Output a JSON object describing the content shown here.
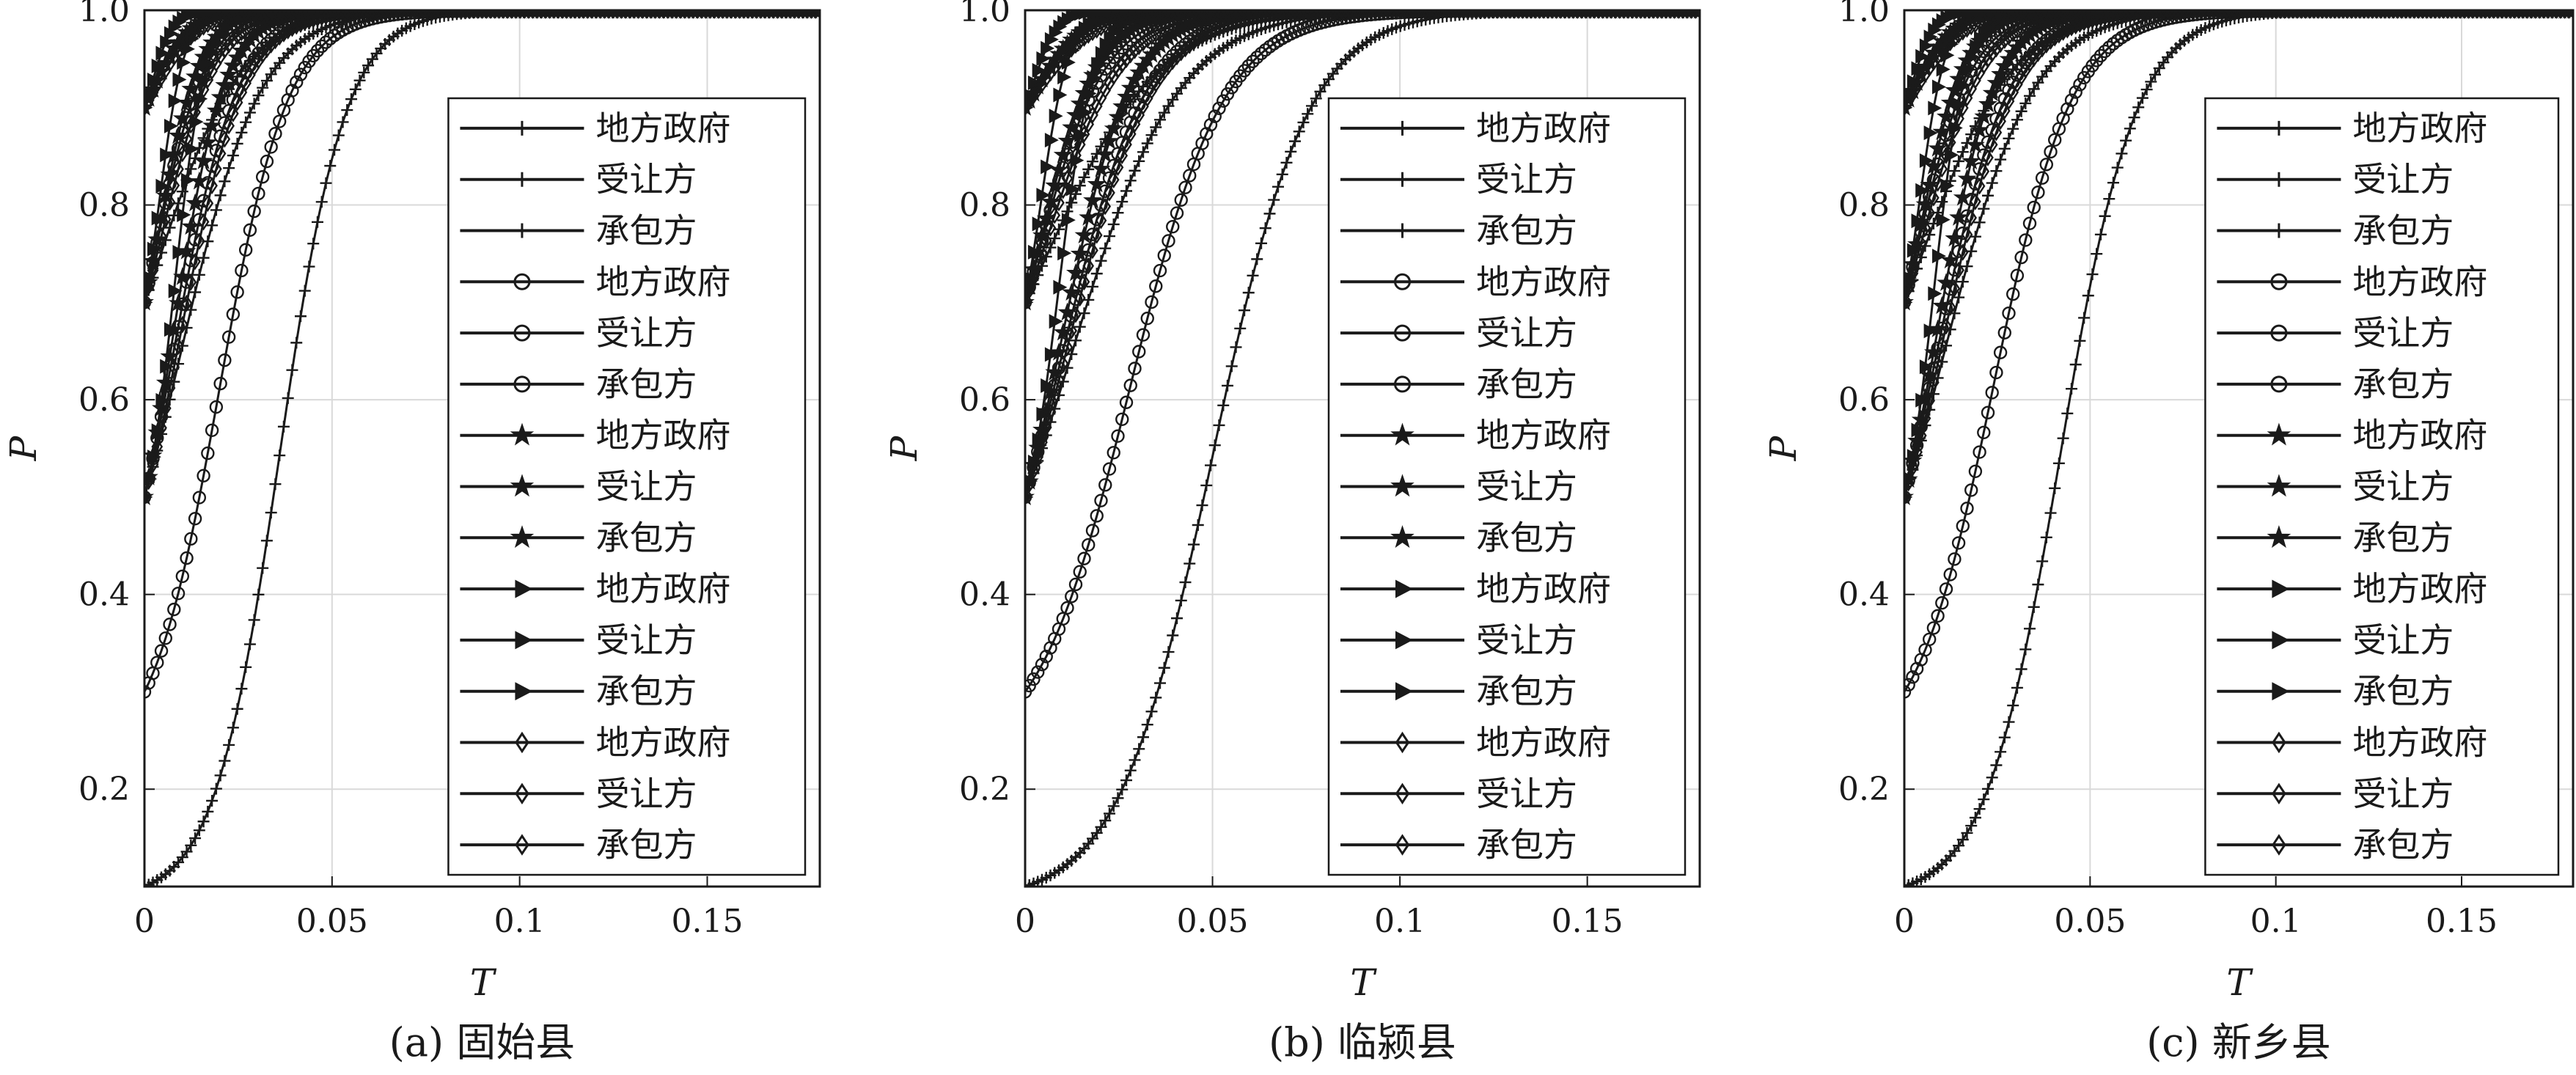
{
  "chart_data": [
    {
      "type": "line",
      "caption": "(a) 固始县",
      "xlabel": "T",
      "ylabel": "P",
      "xlim": [
        0,
        0.18
      ],
      "ylim": [
        0.1,
        1.0
      ],
      "xticks": [
        "0",
        "0.05",
        "0.1",
        "0.15"
      ],
      "yticks": [
        "0.2",
        "0.4",
        "0.6",
        "0.8",
        "1.0"
      ],
      "grid": true,
      "legend_position": "right",
      "series": [
        {
          "name": "地方政府",
          "marker": "plus",
          "p0": 0.1,
          "k": 115,
          "t50": 0.036
        },
        {
          "name": "受让方",
          "marker": "plus",
          "p0": 0.5,
          "k": 95,
          "t50": 0.01
        },
        {
          "name": "承包方",
          "marker": "plus",
          "p0": 0.7,
          "k": 90,
          "t50": 0.004
        },
        {
          "name": "地方政府",
          "marker": "circle",
          "p0": 0.3,
          "k": 110,
          "t50": 0.02
        },
        {
          "name": "受让方",
          "marker": "circle",
          "p0": 0.5,
          "k": 120,
          "t50": 0.008
        },
        {
          "name": "承包方",
          "marker": "circle",
          "p0": 0.7,
          "k": 150,
          "t50": 0.003
        },
        {
          "name": "地方政府",
          "marker": "star",
          "p0": 0.5,
          "k": 150,
          "t50": 0.008
        },
        {
          "name": "受让方",
          "marker": "star",
          "p0": 0.7,
          "k": 180,
          "t50": 0.004
        },
        {
          "name": "承包方",
          "marker": "star",
          "p0": 0.9,
          "k": 200,
          "t50": 0.002
        },
        {
          "name": "地方政府",
          "marker": "triangle",
          "p0": 0.5,
          "k": 250,
          "t50": 0.008
        },
        {
          "name": "受让方",
          "marker": "triangle",
          "p0": 0.7,
          "k": 300,
          "t50": 0.004
        },
        {
          "name": "承包方",
          "marker": "triangle",
          "p0": 0.9,
          "k": 350,
          "t50": 0.002
        },
        {
          "name": "地方政府",
          "marker": "diamond",
          "p0": 0.5,
          "k": 120,
          "t50": 0.01
        },
        {
          "name": "受让方",
          "marker": "diamond",
          "p0": 0.7,
          "k": 140,
          "t50": 0.005
        },
        {
          "name": "承包方",
          "marker": "diamond",
          "p0": 0.9,
          "k": 160,
          "t50": 0.002
        }
      ]
    },
    {
      "type": "line",
      "caption": "(b) 临颍县",
      "xlabel": "T",
      "ylabel": "P",
      "xlim": [
        0,
        0.18
      ],
      "ylim": [
        0.1,
        1.0
      ],
      "xticks": [
        "0",
        "0.05",
        "0.1",
        "0.15"
      ],
      "yticks": [
        "0.2",
        "0.4",
        "0.6",
        "0.8",
        "1.0"
      ],
      "grid": true,
      "legend_position": "right",
      "series": [
        {
          "name": "地方政府",
          "marker": "plus",
          "p0": 0.1,
          "k": 80,
          "t50": 0.05
        },
        {
          "name": "受让方",
          "marker": "plus",
          "p0": 0.5,
          "k": 70,
          "t50": 0.012
        },
        {
          "name": "承包方",
          "marker": "plus",
          "p0": 0.7,
          "k": 65,
          "t50": 0.005
        },
        {
          "name": "地方政府",
          "marker": "circle",
          "p0": 0.3,
          "k": 80,
          "t50": 0.028
        },
        {
          "name": "受让方",
          "marker": "circle",
          "p0": 0.5,
          "k": 90,
          "t50": 0.01
        },
        {
          "name": "承包方",
          "marker": "circle",
          "p0": 0.7,
          "k": 110,
          "t50": 0.003
        },
        {
          "name": "地方政府",
          "marker": "star",
          "p0": 0.5,
          "k": 110,
          "t50": 0.01
        },
        {
          "name": "受让方",
          "marker": "star",
          "p0": 0.7,
          "k": 130,
          "t50": 0.004
        },
        {
          "name": "承包方",
          "marker": "star",
          "p0": 0.9,
          "k": 150,
          "t50": 0.002
        },
        {
          "name": "地方政府",
          "marker": "triangle",
          "p0": 0.5,
          "k": 220,
          "t50": 0.009
        },
        {
          "name": "受让方",
          "marker": "triangle",
          "p0": 0.7,
          "k": 260,
          "t50": 0.004
        },
        {
          "name": "承包方",
          "marker": "triangle",
          "p0": 0.9,
          "k": 300,
          "t50": 0.002
        },
        {
          "name": "地方政府",
          "marker": "diamond",
          "p0": 0.5,
          "k": 90,
          "t50": 0.012
        },
        {
          "name": "受让方",
          "marker": "diamond",
          "p0": 0.7,
          "k": 100,
          "t50": 0.006
        },
        {
          "name": "承包方",
          "marker": "diamond",
          "p0": 0.9,
          "k": 120,
          "t50": 0.002
        }
      ]
    },
    {
      "type": "line",
      "caption": "(c) 新乡县",
      "xlabel": "T",
      "ylabel": "P",
      "xlim": [
        0,
        0.18
      ],
      "ylim": [
        0.1,
        1.0
      ],
      "xticks": [
        "0",
        "0.05",
        "0.1",
        "0.15"
      ],
      "yticks": [
        "0.2",
        "0.4",
        "0.6",
        "0.8",
        "1.0"
      ],
      "grid": true,
      "legend_position": "right",
      "series": [
        {
          "name": "地方政府",
          "marker": "plus",
          "p0": 0.1,
          "k": 100,
          "t50": 0.042
        },
        {
          "name": "受让方",
          "marker": "plus",
          "p0": 0.5,
          "k": 85,
          "t50": 0.011
        },
        {
          "name": "承包方",
          "marker": "plus",
          "p0": 0.7,
          "k": 80,
          "t50": 0.004
        },
        {
          "name": "地方政府",
          "marker": "circle",
          "p0": 0.3,
          "k": 95,
          "t50": 0.024
        },
        {
          "name": "受让方",
          "marker": "circle",
          "p0": 0.5,
          "k": 105,
          "t50": 0.009
        },
        {
          "name": "承包方",
          "marker": "circle",
          "p0": 0.7,
          "k": 130,
          "t50": 0.003
        },
        {
          "name": "地方政府",
          "marker": "star",
          "p0": 0.5,
          "k": 130,
          "t50": 0.009
        },
        {
          "name": "受让方",
          "marker": "star",
          "p0": 0.7,
          "k": 160,
          "t50": 0.004
        },
        {
          "name": "承包方",
          "marker": "star",
          "p0": 0.9,
          "k": 180,
          "t50": 0.002
        },
        {
          "name": "地方政府",
          "marker": "triangle",
          "p0": 0.5,
          "k": 240,
          "t50": 0.008
        },
        {
          "name": "受让方",
          "marker": "triangle",
          "p0": 0.7,
          "k": 280,
          "t50": 0.004
        },
        {
          "name": "承包方",
          "marker": "triangle",
          "p0": 0.9,
          "k": 320,
          "t50": 0.002
        },
        {
          "name": "地方政府",
          "marker": "diamond",
          "p0": 0.5,
          "k": 105,
          "t50": 0.011
        },
        {
          "name": "受让方",
          "marker": "diamond",
          "p0": 0.7,
          "k": 120,
          "t50": 0.005
        },
        {
          "name": "承包方",
          "marker": "diamond",
          "p0": 0.9,
          "k": 140,
          "t50": 0.002
        }
      ]
    }
  ]
}
